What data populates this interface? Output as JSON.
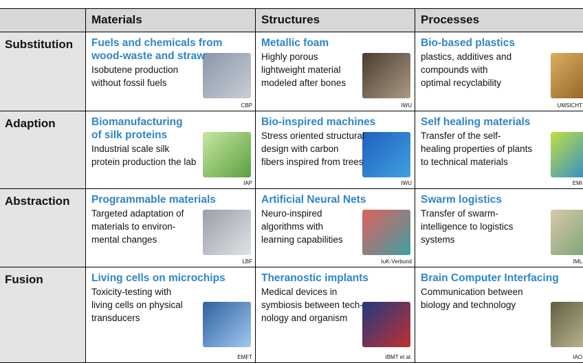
{
  "table": {
    "header": [
      "Materials",
      "Structures",
      "Processes"
    ],
    "rows": [
      {
        "label": "Substitution",
        "cells": [
          {
            "title": "Fuels and chemicals from\nwood-waste and straw",
            "text": "Isobutene production\nwithout fossil fuels",
            "credit": "CBP"
          },
          {
            "title": "Metallic foam",
            "text": "Highly porous\nlightweight material\nmodeled after bones",
            "credit": "IWU"
          },
          {
            "title": "Bio-based plastics",
            "text": "plastics, additives and\ncompounds with\noptimal recyclability",
            "credit": "UMSICHT"
          }
        ]
      },
      {
        "label": "Adaption",
        "cells": [
          {
            "title": "Biomanufacturing\nof silk proteins",
            "text": "Industrial scale silk\nprotein production the lab",
            "credit": "IAP"
          },
          {
            "title": "Bio-inspired machines",
            "text": "Stress oriented structural\ndesign with carbon\nfibers inspired from trees",
            "credit": "IWU"
          },
          {
            "title": "Self healing materials",
            "text": "Transfer of the self-\nhealing properties of plants\nto technical materials",
            "credit": "EMI"
          }
        ]
      },
      {
        "label": "Abstraction",
        "cells": [
          {
            "title": "Programmable materials",
            "text": "Targeted adaptation of\nmaterials to environ-\nmental changes",
            "credit": "LBF"
          },
          {
            "title": "Artificial Neural Nets",
            "text": "Neuro-inspired\nalgorithms with\nlearning capabilities",
            "credit": "IuK-Verbund"
          },
          {
            "title": "Swarm logistics",
            "text": "Transfer of swarm-\nintelligence to logistics\nsystems",
            "credit": "IML"
          }
        ]
      },
      {
        "label": "Fusion",
        "cells": [
          {
            "title": "Living cells on microchips",
            "text": "Toxicity-testing with\nliving cells on physical\ntransducers",
            "credit": "EMFT"
          },
          {
            "title": "Theranostic implants",
            "text": "Medical devices in\nsymbiosis between tech-\nnology and organism",
            "credit": "IBMT et al."
          },
          {
            "title": "Brain Computer Interfacing",
            "text": "Communication between\nbiology and technology",
            "credit": "IAO"
          }
        ]
      }
    ]
  }
}
